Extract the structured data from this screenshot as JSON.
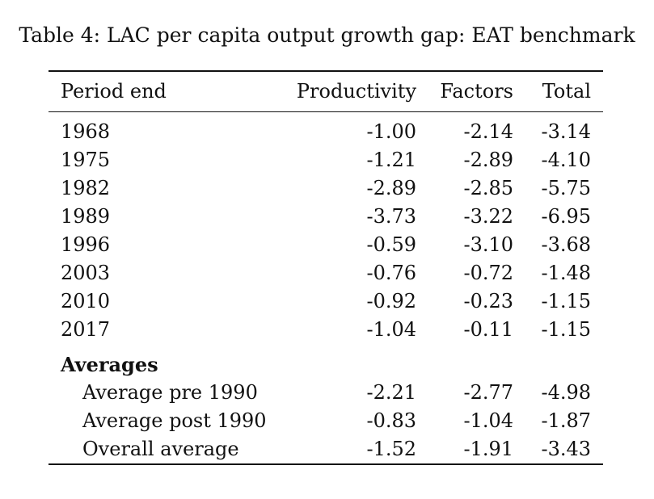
{
  "caption": "Table 4: LAC per capita output growth gap: EAT benchmark",
  "columns": [
    "Period end",
    "Productivity",
    "Factors",
    "Total"
  ],
  "rows": [
    {
      "period": "1968",
      "productivity": "-1.00",
      "factors": "-2.14",
      "total": "-3.14"
    },
    {
      "period": "1975",
      "productivity": "-1.21",
      "factors": "-2.89",
      "total": "-4.10"
    },
    {
      "period": "1982",
      "productivity": "-2.89",
      "factors": "-2.85",
      "total": "-5.75"
    },
    {
      "period": "1989",
      "productivity": "-3.73",
      "factors": "-3.22",
      "total": "-6.95"
    },
    {
      "period": "1996",
      "productivity": "-0.59",
      "factors": "-3.10",
      "total": "-3.68"
    },
    {
      "period": "2003",
      "productivity": "-0.76",
      "factors": "-0.72",
      "total": "-1.48"
    },
    {
      "period": "2010",
      "productivity": "-0.92",
      "factors": "-0.23",
      "total": "-1.15"
    },
    {
      "period": "2017",
      "productivity": "-1.04",
      "factors": "-0.11",
      "total": "-1.15"
    }
  ],
  "averages": {
    "title": "Averages",
    "rows": [
      {
        "label": "Average pre 1990",
        "productivity": "-2.21",
        "factors": "-2.77",
        "total": "-4.98"
      },
      {
        "label": "Average post 1990",
        "productivity": "-0.83",
        "factors": "-1.04",
        "total": "-1.87"
      },
      {
        "label": "Overall average",
        "productivity": "-1.52",
        "factors": "-1.91",
        "total": "-3.43"
      }
    ]
  }
}
